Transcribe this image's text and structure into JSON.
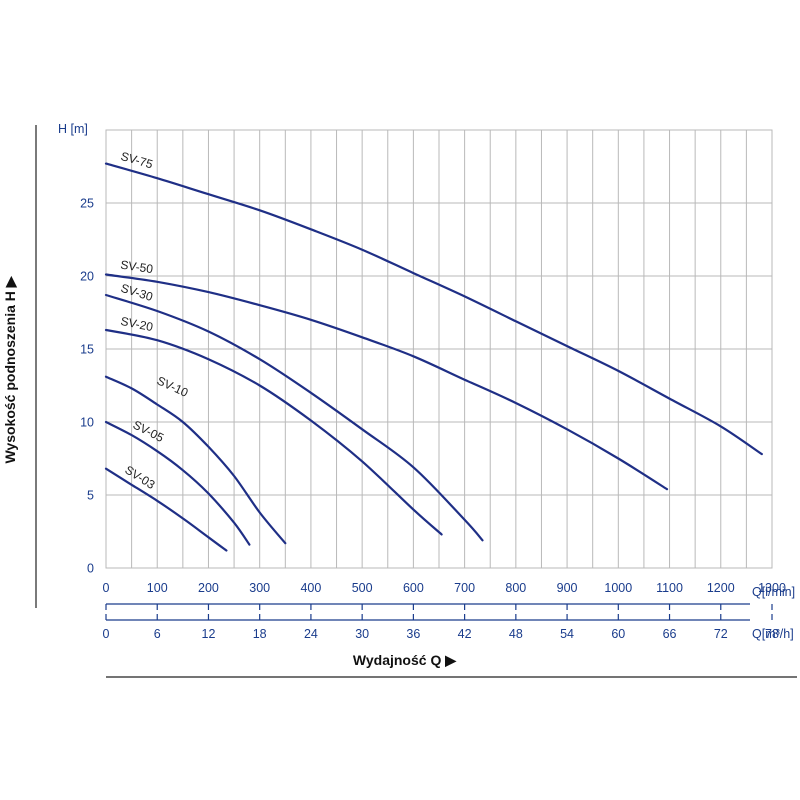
{
  "chart_data": {
    "type": "line",
    "ylabel": "H [m]",
    "y_axis_title": "Wysokość podnoszenia H ▶",
    "x_axis_title": "Wydajność Q ▶",
    "x_unit_primary": "Q[l/min]",
    "x_unit_secondary": "Q[m³/h]",
    "xlim": [
      0,
      1300
    ],
    "ylim": [
      0,
      30
    ],
    "x_ticks": [
      0,
      100,
      200,
      300,
      400,
      500,
      600,
      700,
      800,
      900,
      1000,
      1100,
      1200,
      1300
    ],
    "x2_ticks": [
      0,
      6,
      12,
      18,
      24,
      30,
      36,
      42,
      48,
      54,
      60,
      66,
      72,
      78
    ],
    "y_ticks": [
      0,
      5,
      10,
      15,
      20,
      25
    ],
    "grid": true,
    "colors": {
      "curve": "#1f2f86",
      "grid": "#b9b9b9",
      "ticks": "#1a3c8c"
    },
    "series": [
      {
        "name": "SV-75",
        "x": [
          0,
          100,
          200,
          300,
          400,
          500,
          600,
          700,
          800,
          900,
          1000,
          1100,
          1200,
          1280
        ],
        "y": [
          27.7,
          26.7,
          25.6,
          24.5,
          23.2,
          21.8,
          20.2,
          18.6,
          16.9,
          15.2,
          13.5,
          11.6,
          9.7,
          7.8
        ]
      },
      {
        "name": "SV-50",
        "x": [
          0,
          100,
          200,
          300,
          400,
          500,
          600,
          700,
          800,
          900,
          1000,
          1095
        ],
        "y": [
          20.1,
          19.6,
          18.9,
          18.0,
          17.0,
          15.8,
          14.5,
          12.9,
          11.3,
          9.5,
          7.5,
          5.4
        ]
      },
      {
        "name": "SV-30",
        "x": [
          0,
          100,
          200,
          300,
          400,
          500,
          600,
          700,
          735
        ],
        "y": [
          18.7,
          17.6,
          16.2,
          14.3,
          12.0,
          9.5,
          6.9,
          3.3,
          1.9
        ]
      },
      {
        "name": "SV-20",
        "x": [
          0,
          100,
          200,
          300,
          400,
          500,
          600,
          655
        ],
        "y": [
          16.3,
          15.6,
          14.3,
          12.5,
          10.1,
          7.3,
          4.0,
          2.3
        ]
      },
      {
        "name": "SV-10",
        "x": [
          0,
          50,
          100,
          150,
          200,
          250,
          300,
          350
        ],
        "y": [
          13.1,
          12.3,
          11.2,
          10.0,
          8.3,
          6.3,
          3.8,
          1.7
        ]
      },
      {
        "name": "SV-05",
        "x": [
          0,
          50,
          100,
          150,
          200,
          250,
          280
        ],
        "y": [
          10.0,
          9.1,
          8.0,
          6.7,
          5.1,
          3.1,
          1.6
        ]
      },
      {
        "name": "SV-03",
        "x": [
          0,
          50,
          100,
          150,
          200,
          235
        ],
        "y": [
          6.8,
          5.7,
          4.6,
          3.4,
          2.1,
          1.2
        ]
      }
    ]
  }
}
